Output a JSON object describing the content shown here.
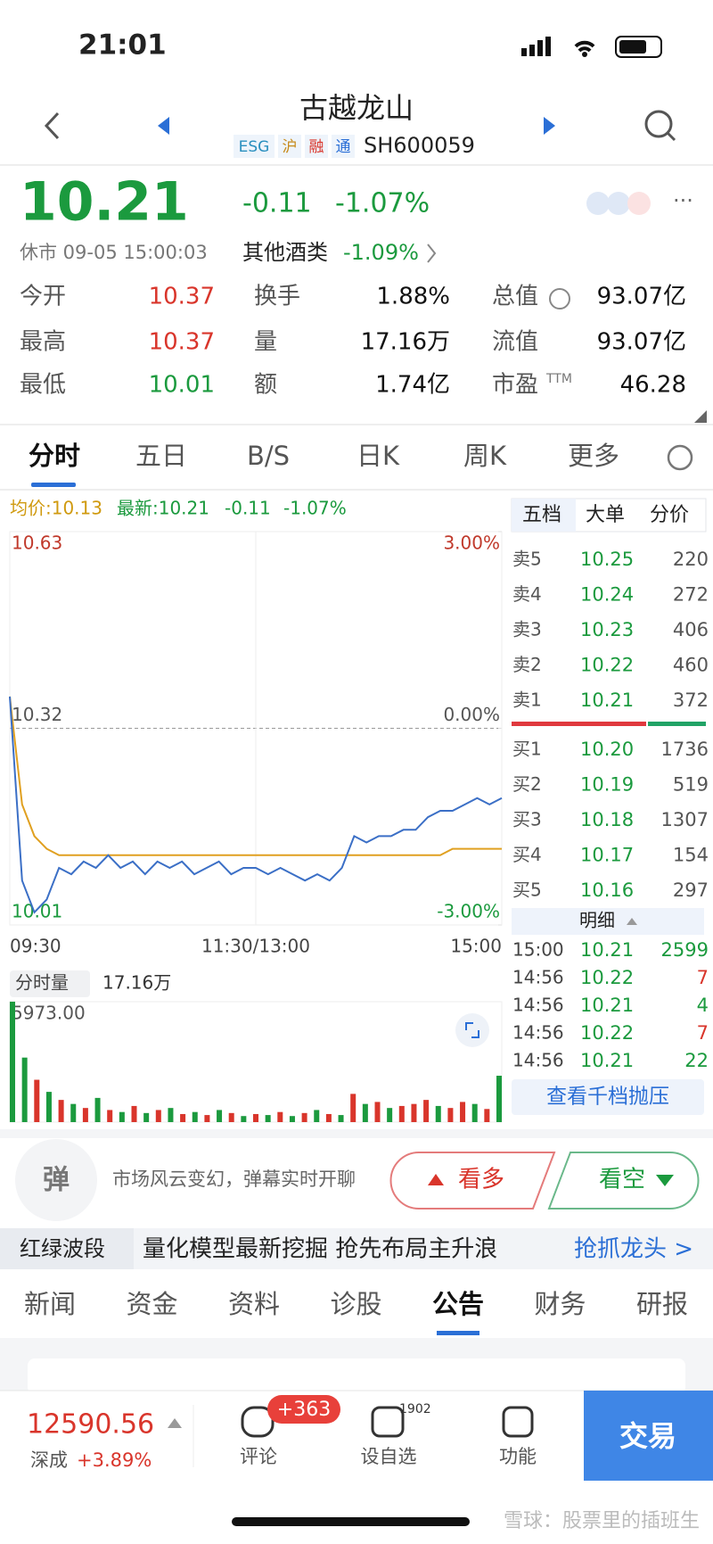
{
  "status_bar": {
    "time": "21:01"
  },
  "header": {
    "title": "古越龙山",
    "tags": [
      "ESG",
      "沪",
      "融",
      "通"
    ],
    "code": "SH600059"
  },
  "quote": {
    "price": "10.21",
    "change": "-0.11",
    "change_pct": "-1.07%",
    "status": "休市 09-05 15:00:03",
    "sector": "其他酒类",
    "sector_pct": "-1.09%"
  },
  "stats": {
    "items": [
      [
        "今开",
        "10.37"
      ],
      [
        "换手",
        "1.88%"
      ],
      [
        "总值",
        "93.07亿"
      ],
      [
        "最高",
        "10.37"
      ],
      [
        "量",
        "17.16万"
      ],
      [
        "流值",
        "93.07亿"
      ],
      [
        "最低",
        "10.01"
      ],
      [
        "额",
        "1.74亿"
      ],
      [
        "市盈",
        "46.28"
      ]
    ],
    "sup": "TTM",
    "colors": [
      "#d9352b",
      "#111111",
      "#111111",
      "#d9352b",
      "#111111",
      "#111111",
      "#1b9a3e",
      "#111111",
      "#111111"
    ]
  },
  "tabs": [
    "分时",
    "五日",
    "B/S",
    "日K",
    "周K",
    "更多"
  ],
  "legend": [
    "均价:10.13",
    "最新:10.21",
    "-0.11",
    "-1.07%"
  ],
  "chart_data": [
    {
      "type": "line",
      "x": [
        0,
        6,
        12,
        18,
        24,
        30,
        36,
        42,
        48,
        54,
        60,
        66,
        72,
        78,
        84,
        90,
        96,
        102,
        108,
        114,
        120,
        126,
        132,
        138,
        144,
        150,
        156,
        162,
        168,
        174,
        180,
        186,
        192,
        198,
        204,
        210,
        216,
        222,
        228,
        234,
        240
      ],
      "xlim": [
        0,
        240
      ],
      "xticks": [
        {
          "value": 0,
          "label": "09:30"
        },
        {
          "value": 120,
          "label": "11:30/13:00"
        },
        {
          "value": 240,
          "label": "15:00"
        }
      ],
      "ylim": [
        10.01,
        10.63
      ],
      "yticks": [
        10.63,
        10.32,
        10.01
      ],
      "y2lim": [
        -3,
        3
      ],
      "y2ticks": [
        {
          "value": 3,
          "label": "3.00%"
        },
        {
          "value": 0,
          "label": "0.00%"
        },
        {
          "value": -3,
          "label": "-3.00%"
        }
      ],
      "series": [
        {
          "color": "#e0a020",
          "values": [
            10.37,
            10.2,
            10.15,
            10.13,
            10.12,
            10.12,
            10.12,
            10.12,
            10.12,
            10.12,
            10.12,
            10.12,
            10.12,
            10.12,
            10.12,
            10.12,
            10.12,
            10.12,
            10.12,
            10.12,
            10.12,
            10.12,
            10.12,
            10.12,
            10.12,
            10.12,
            10.12,
            10.12,
            10.12,
            10.12,
            10.12,
            10.12,
            10.12,
            10.12,
            10.12,
            10.12,
            10.13,
            10.13,
            10.13,
            10.13,
            10.13
          ]
        },
        {
          "color": "#3b6fc6",
          "values": [
            10.37,
            10.08,
            10.03,
            10.05,
            10.1,
            10.09,
            10.11,
            10.1,
            10.12,
            10.1,
            10.11,
            10.09,
            10.11,
            10.1,
            10.11,
            10.09,
            10.1,
            10.11,
            10.09,
            10.1,
            10.1,
            10.09,
            10.1,
            10.09,
            10.08,
            10.09,
            10.08,
            10.1,
            10.15,
            10.14,
            10.15,
            10.15,
            10.16,
            10.16,
            10.18,
            10.19,
            10.19,
            10.2,
            10.21,
            10.2,
            10.21
          ]
        }
      ]
    },
    {
      "type": "bar",
      "title": "分时量",
      "total": "17.16万",
      "x": [
        0,
        6,
        12,
        18,
        24,
        30,
        36,
        42,
        48,
        54,
        60,
        66,
        72,
        78,
        84,
        90,
        96,
        102,
        108,
        114,
        120,
        126,
        132,
        138,
        144,
        150,
        156,
        162,
        168,
        174,
        180,
        186,
        192,
        198,
        204,
        210,
        216,
        222,
        228,
        234,
        240
      ],
      "xlim": [
        0,
        240
      ],
      "ylim": [
        0,
        5973
      ],
      "yticks": [
        {
          "value": 5973,
          "label": "5973.00"
        }
      ],
      "values": [
        5973,
        3200,
        2100,
        1500,
        1100,
        900,
        700,
        1200,
        600,
        500,
        800,
        450,
        600,
        700,
        400,
        500,
        350,
        600,
        450,
        300,
        400,
        350,
        500,
        300,
        450,
        600,
        400,
        350,
        1400,
        900,
        1000,
        700,
        800,
        900,
        1100,
        800,
        700,
        1000,
        900,
        650,
        2300
      ],
      "colors": [
        "#1b9a3e",
        "#1b9a3e",
        "#d9352b",
        "#1b9a3e",
        "#d9352b",
        "#1b9a3e",
        "#d9352b",
        "#1b9a3e",
        "#d9352b",
        "#1b9a3e",
        "#d9352b",
        "#1b9a3e",
        "#d9352b",
        "#1b9a3e",
        "#d9352b",
        "#1b9a3e",
        "#d9352b",
        "#1b9a3e",
        "#d9352b",
        "#1b9a3e",
        "#d9352b",
        "#1b9a3e",
        "#d9352b",
        "#1b9a3e",
        "#d9352b",
        "#1b9a3e",
        "#d9352b",
        "#1b9a3e",
        "#d9352b",
        "#1b9a3e",
        "#d9352b",
        "#1b9a3e",
        "#d9352b",
        "#d9352b",
        "#d9352b",
        "#1b9a3e",
        "#d9352b",
        "#d9352b",
        "#1b9a3e",
        "#d9352b",
        "#1b9a3e"
      ]
    }
  ],
  "order_book": {
    "tabs": [
      "五档",
      "大单",
      "分价"
    ],
    "asks": [
      [
        "卖5",
        "10.25",
        "220"
      ],
      [
        "卖4",
        "10.24",
        "272"
      ],
      [
        "卖3",
        "10.23",
        "406"
      ],
      [
        "卖2",
        "10.22",
        "460"
      ],
      [
        "卖1",
        "10.21",
        "372"
      ]
    ],
    "bids": [
      [
        "买1",
        "10.20",
        "1736"
      ],
      [
        "买2",
        "10.19",
        "519"
      ],
      [
        "买3",
        "10.18",
        "1307"
      ],
      [
        "买4",
        "10.17",
        "154"
      ],
      [
        "买5",
        "10.16",
        "297"
      ]
    ],
    "detail_title": "明细",
    "trades": [
      [
        "15:00",
        "10.21",
        "2599"
      ],
      [
        "14:56",
        "10.22",
        "7"
      ],
      [
        "14:56",
        "10.21",
        "4"
      ],
      [
        "14:56",
        "10.22",
        "7"
      ],
      [
        "14:56",
        "10.21",
        "22"
      ]
    ],
    "trade_colors": [
      "#1b9a3e",
      "#d9352b",
      "#1b9a3e",
      "#d9352b",
      "#1b9a3e"
    ],
    "button": "查看千档抛压"
  },
  "danmaku": {
    "icon": "弹",
    "text": "市场风云变幻，弹幕实时开聊",
    "bull": "看多",
    "bear": "看空"
  },
  "banner": {
    "tag": "红绿波段",
    "text": "量化模型最新挖掘 抢先布局主升浪",
    "link": "抢抓龙头 >"
  },
  "news_tabs": [
    "新闻",
    "资金",
    "资料",
    "诊股",
    "公告",
    "财务",
    "研报"
  ],
  "bottom_bar": {
    "index_value": "12590.56",
    "index_name": "深成",
    "index_change": "+3.89%",
    "comment": "评论",
    "comment_badge": "+363",
    "watch": "设自选",
    "watch_count": "1902",
    "func": "功能",
    "trade": "交易"
  },
  "watermark": "雪球：股票里的插班生"
}
